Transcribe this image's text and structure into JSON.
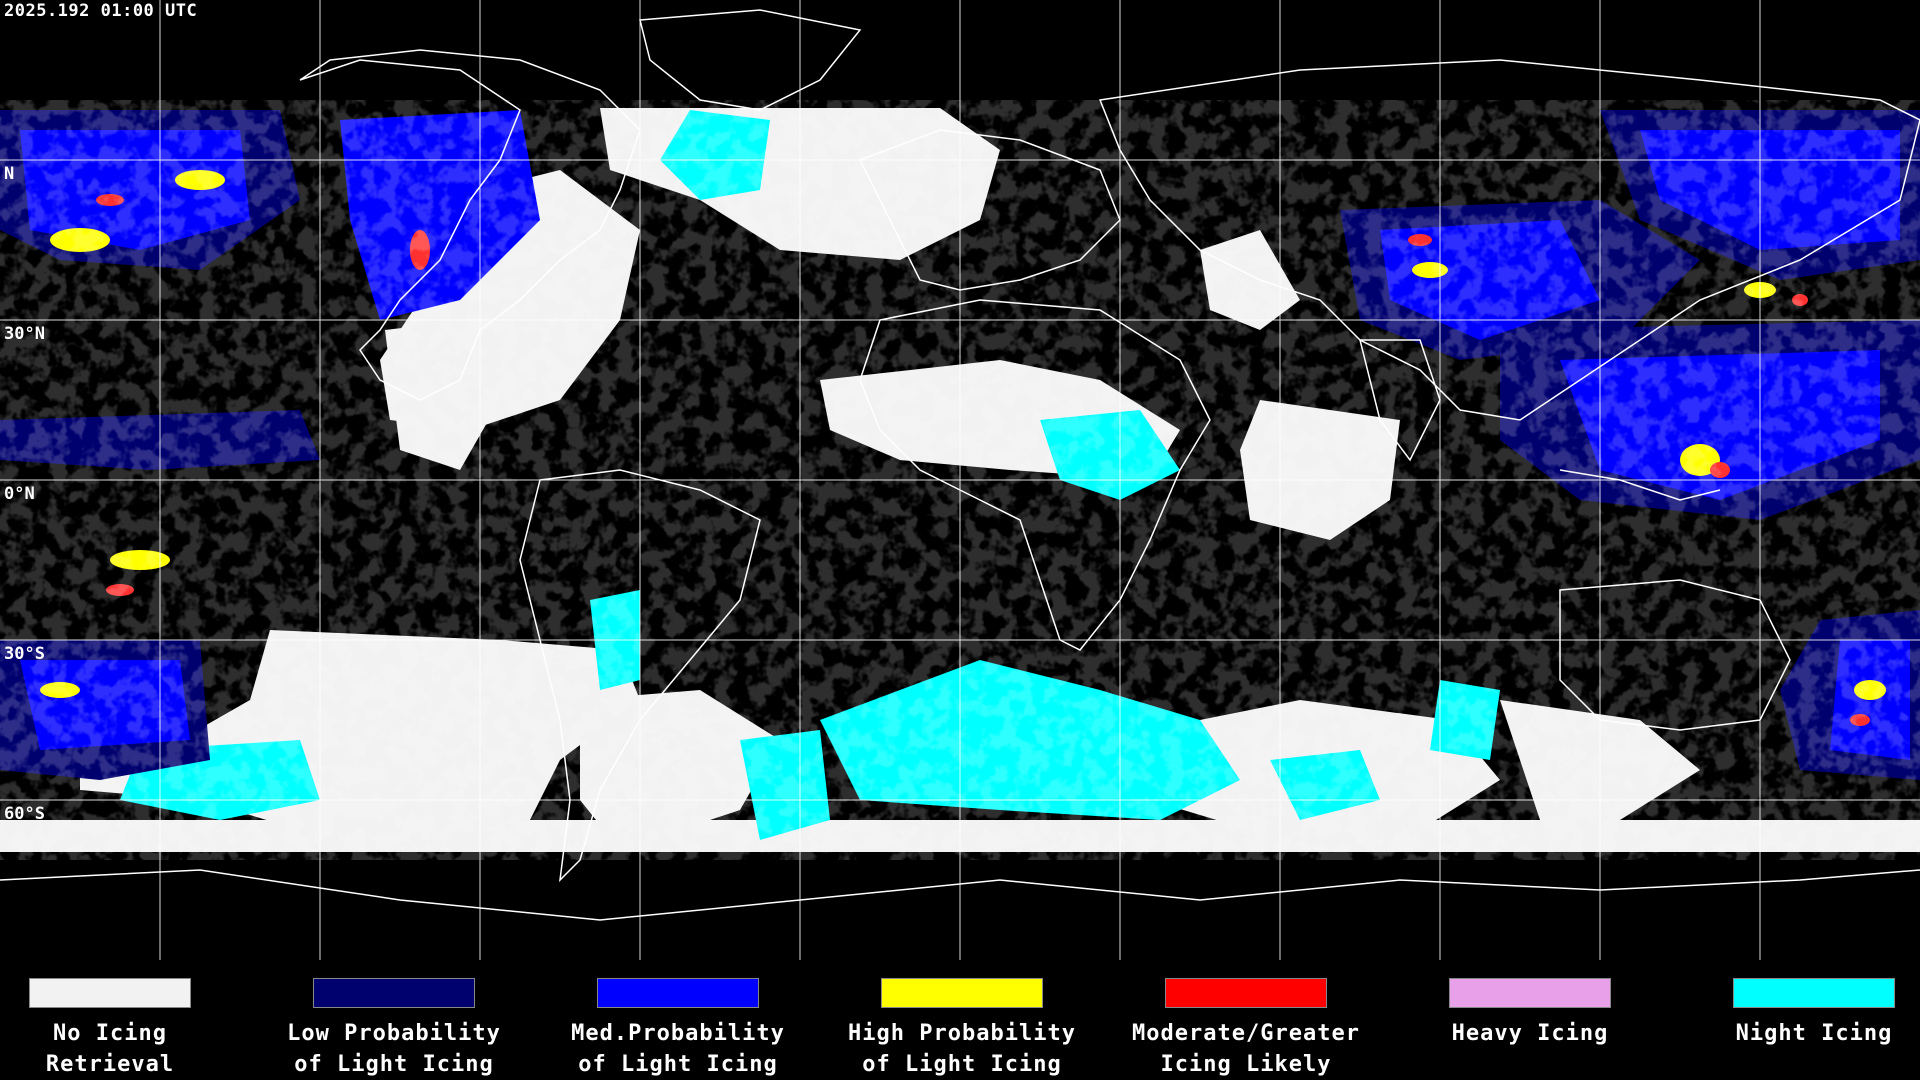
{
  "timestamp": "2025.192 01:00 UTC",
  "lat_labels": [
    "N",
    "30°N",
    "0°N",
    "30°S",
    "60°S"
  ],
  "legend": [
    {
      "label": "No Icing\nRetrieval",
      "color": "#f2f2f2"
    },
    {
      "label": "Low Probability\nof Light Icing",
      "color": "#00006e"
    },
    {
      "label": "Med.Probability\nof Light Icing",
      "color": "#0000ff"
    },
    {
      "label": "High Probability\nof Light Icing",
      "color": "#ffff00"
    },
    {
      "label": "Moderate/Greater\nIcing Likely",
      "color": "#ff0000"
    },
    {
      "label": "Heavy Icing",
      "color": "#e8a0e8"
    },
    {
      "label": "Night Icing",
      "color": "#00ffff"
    }
  ],
  "colors": {
    "background": "#000000",
    "grid": "#ffffff",
    "coastline": "#ffffff"
  }
}
